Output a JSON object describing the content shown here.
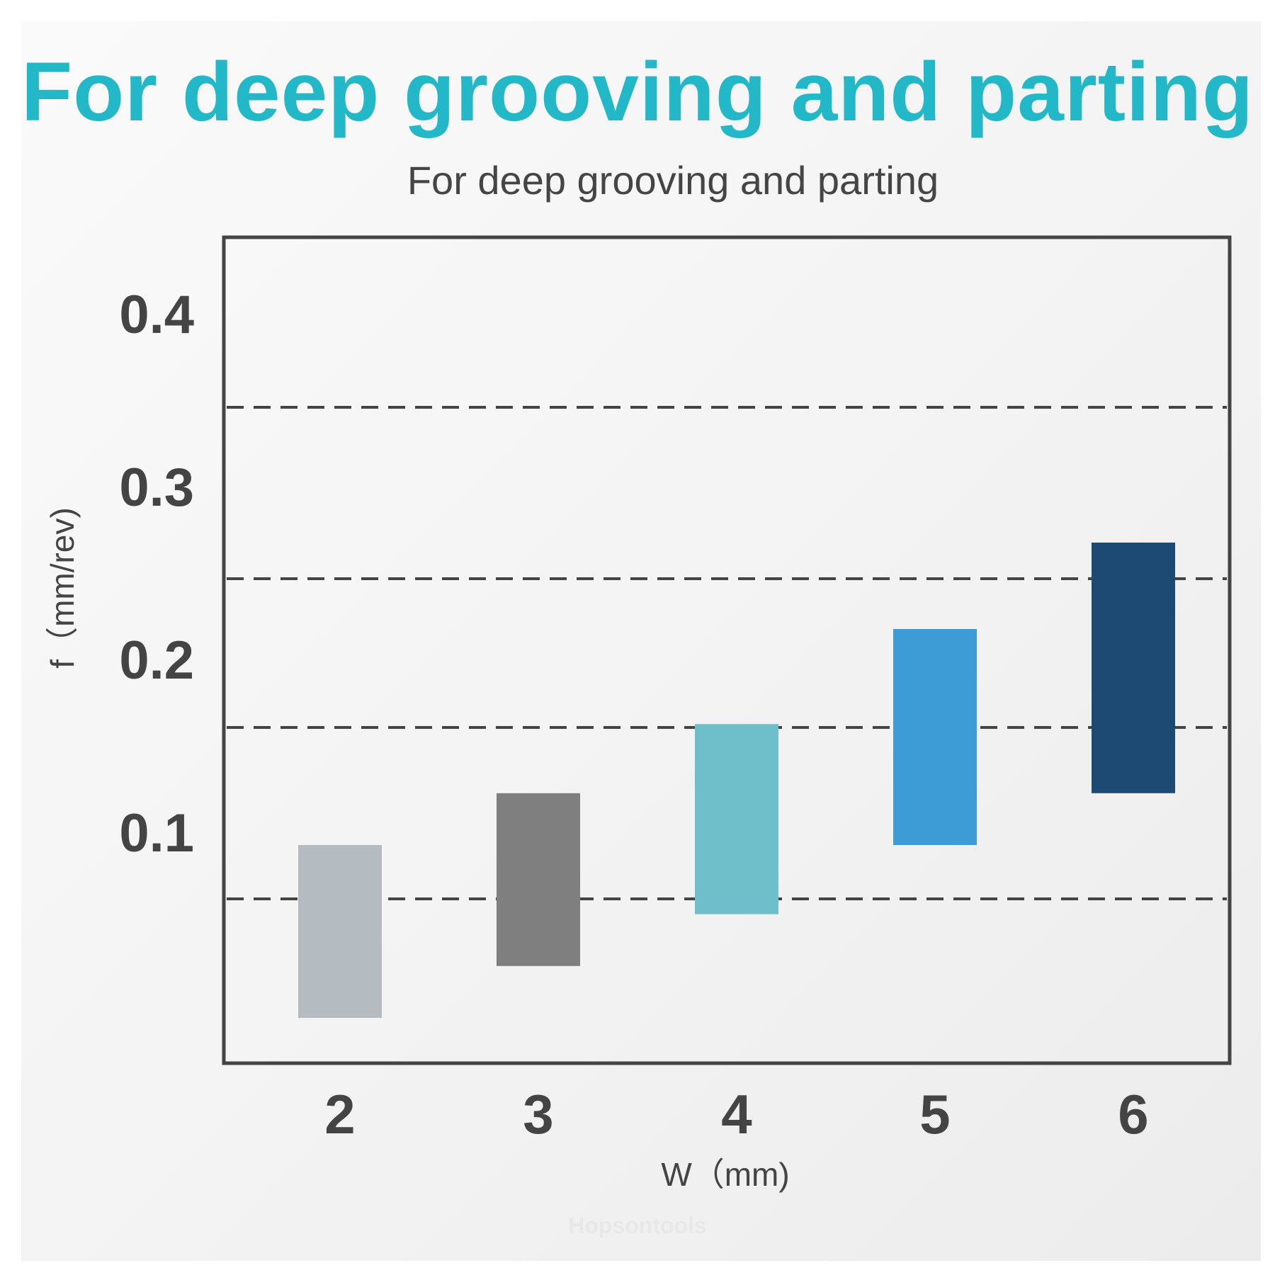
{
  "header": {
    "title": "For deep grooving and parting"
  },
  "watermark": "Hopsontools",
  "chart_data": {
    "type": "bar",
    "title": "For deep grooving and parting",
    "xlabel": "W（mm)",
    "ylabel": "f（mm/rev)",
    "categories": [
      "2",
      "3",
      "4",
      "5",
      "6"
    ],
    "ranges": [
      {
        "low": 0.0,
        "high": 0.1
      },
      {
        "low": 0.03,
        "high": 0.13
      },
      {
        "low": 0.06,
        "high": 0.17
      },
      {
        "low": 0.1,
        "high": 0.225
      },
      {
        "low": 0.13,
        "high": 0.275
      }
    ],
    "colors": [
      "#b5bcc1",
      "#7f7f7f",
      "#6ebfca",
      "#3d9bd5",
      "#1c4a72"
    ],
    "y_ticks": [
      "0.4",
      "0.3",
      "0.2",
      "0.1"
    ],
    "grid": "dashed",
    "legend": "none"
  }
}
